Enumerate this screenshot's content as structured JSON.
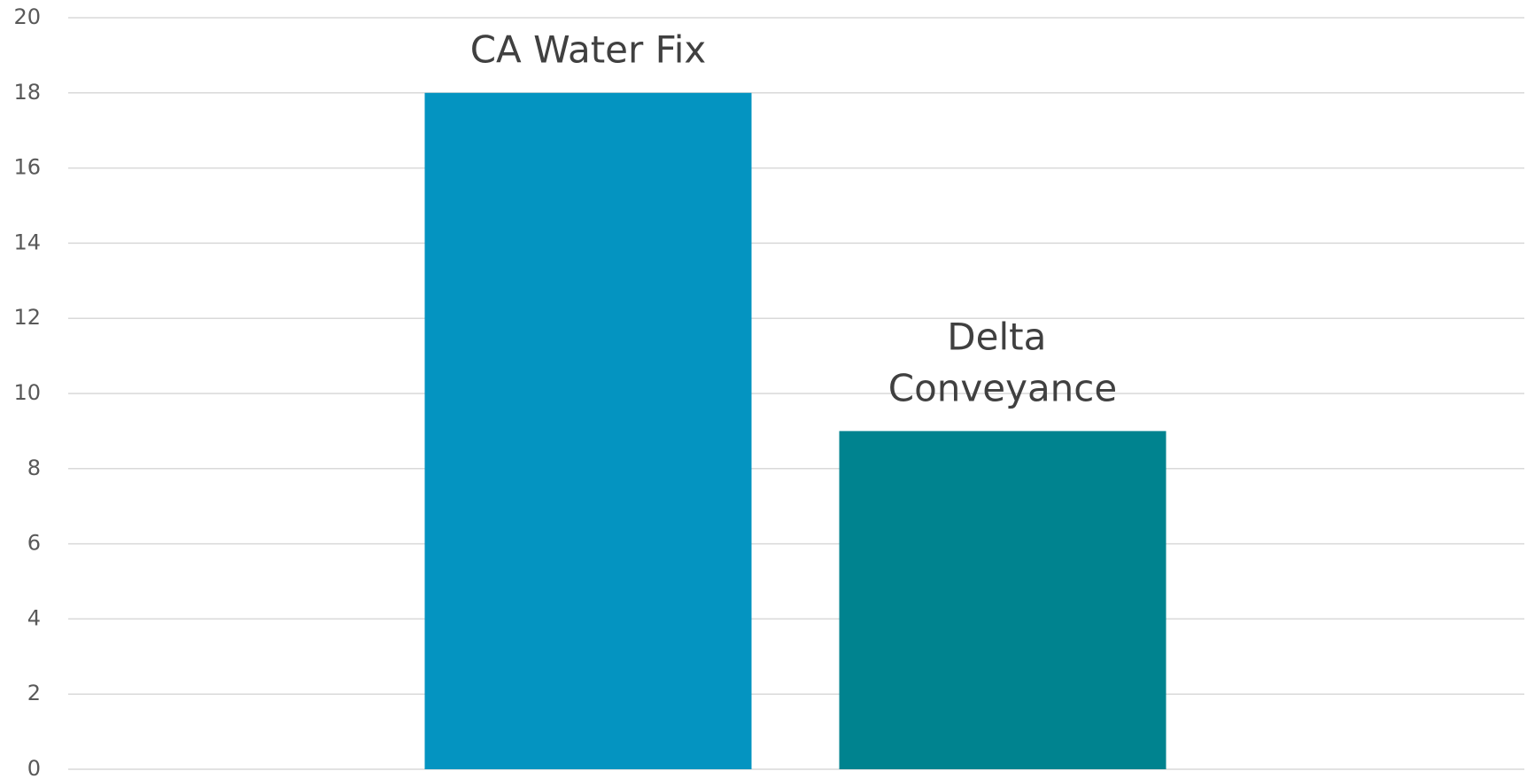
{
  "chart_data": {
    "type": "bar",
    "categories": [
      "CA Water Fix",
      "Delta Conveyance"
    ],
    "values": [
      18,
      9
    ],
    "colors": [
      "#0494c1",
      "#00838f"
    ],
    "ylim": [
      0,
      20
    ],
    "yticks": [
      0,
      2,
      4,
      6,
      8,
      10,
      12,
      14,
      16,
      18,
      20
    ],
    "grid": true
  }
}
